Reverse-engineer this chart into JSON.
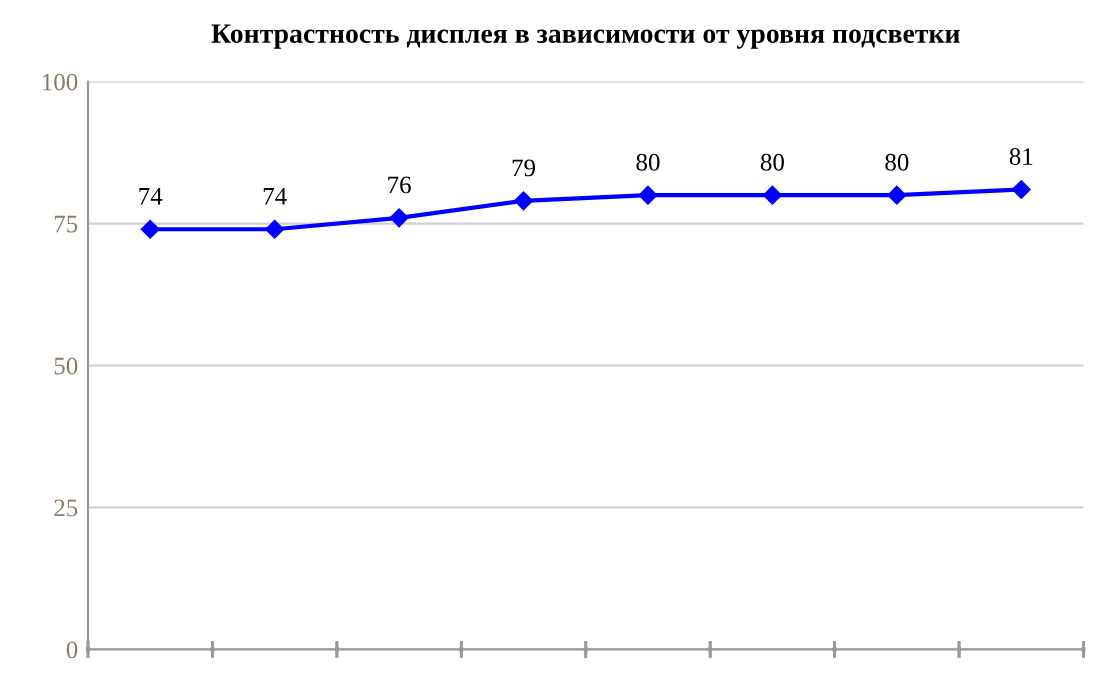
{
  "chart_data": {
    "type": "line",
    "title": "Контрастность дисплея в зависимости от уровня подсветки",
    "categories": [
      null,
      null,
      null,
      null,
      null,
      null,
      null,
      null
    ],
    "values": [
      74,
      74,
      76,
      79,
      80,
      80,
      80,
      81
    ],
    "color": "#0000ff",
    "marker": "diamond",
    "line_style": "solid",
    "data_labels": true,
    "ylim": [
      0,
      100
    ],
    "yticks": [
      0,
      25,
      50,
      75,
      100
    ],
    "grid": "y",
    "legend": false
  }
}
